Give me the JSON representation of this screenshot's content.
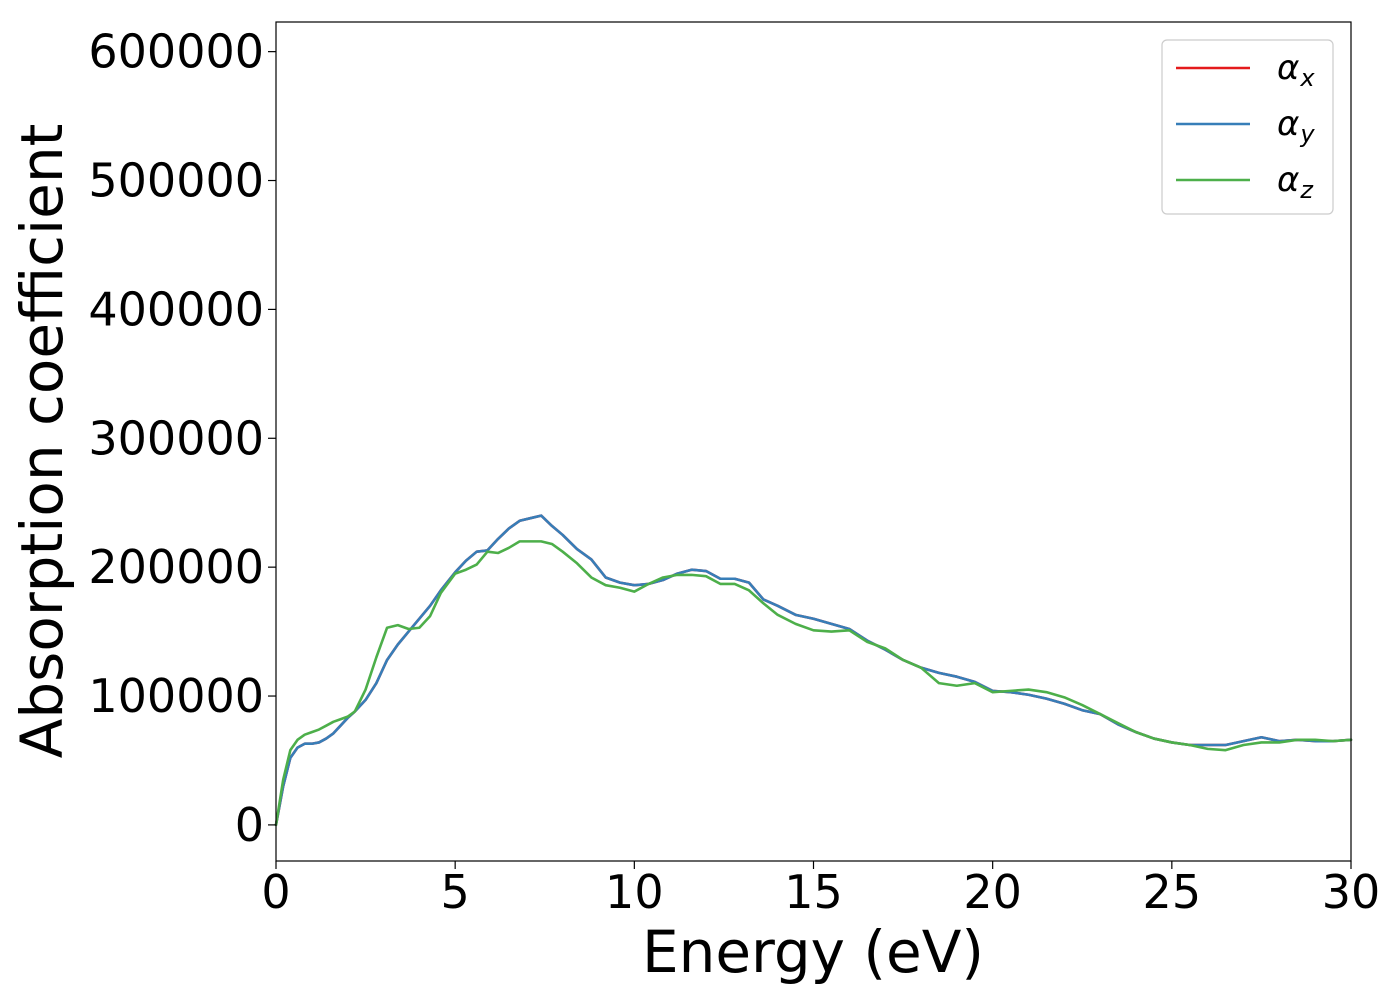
{
  "chart_data": {
    "type": "line",
    "title": "",
    "xlabel": "Energy (eV)",
    "ylabel": "Absorption coefficient",
    "xlim": [
      0,
      30
    ],
    "ylim": [
      -28000,
      623000
    ],
    "xticks": [
      "0",
      "5",
      "10",
      "15",
      "20",
      "25",
      "30"
    ],
    "yticks": [
      "0",
      "100000",
      "200000",
      "300000",
      "400000",
      "500000",
      "600000"
    ],
    "grid": false,
    "legend_position": "top-right",
    "series": [
      {
        "name": "αx",
        "greek": "α",
        "sub": "x",
        "color": "#e41a1c",
        "x": [
          0,
          0.2,
          0.4,
          0.6,
          0.8,
          1.0,
          1.2,
          1.4,
          1.6,
          1.8,
          2.0,
          2.2,
          2.5,
          2.8,
          3.1,
          3.4,
          3.7,
          4.0,
          4.3,
          4.6,
          5.0,
          5.3,
          5.6,
          5.9,
          6.2,
          6.5,
          6.8,
          7.1,
          7.4,
          7.7,
          8.0,
          8.4,
          8.8,
          9.2,
          9.6,
          10.0,
          10.4,
          10.8,
          11.2,
          11.6,
          12.0,
          12.4,
          12.8,
          13.2,
          13.6,
          14.0,
          14.5,
          15.0,
          15.5,
          16.0,
          16.5,
          17.0,
          17.5,
          18.0,
          18.5,
          19.0,
          19.5,
          20.0,
          20.5,
          21.0,
          21.5,
          22.0,
          22.5,
          23.0,
          23.5,
          24.0,
          24.5,
          25.0,
          25.5,
          26.0,
          26.5,
          27.0,
          27.5,
          28.0,
          28.5,
          29.0,
          29.5,
          30.0
        ],
        "y": [
          0,
          30000,
          52000,
          60000,
          63000,
          63000,
          64000,
          67000,
          71000,
          77000,
          83000,
          88000,
          97000,
          110000,
          128000,
          140000,
          150000,
          160000,
          170000,
          182000,
          196000,
          205000,
          212000,
          213000,
          222000,
          230000,
          236000,
          238000,
          240000,
          232000,
          225000,
          214000,
          206000,
          192000,
          188000,
          186000,
          187000,
          190000,
          195000,
          198000,
          197000,
          191000,
          191000,
          188000,
          175000,
          170000,
          163000,
          160000,
          156000,
          152000,
          143000,
          136000,
          128000,
          122000,
          118000,
          115000,
          111000,
          104000,
          103000,
          101000,
          98000,
          94000,
          89000,
          86000,
          78000,
          72000,
          67000,
          64000,
          62000,
          62000,
          62000,
          65000,
          68000,
          65000,
          66000,
          65000,
          65000,
          66000
        ]
      },
      {
        "name": "αy",
        "greek": "α",
        "sub": "y",
        "color": "#377eb8",
        "x": [
          0,
          0.2,
          0.4,
          0.6,
          0.8,
          1.0,
          1.2,
          1.4,
          1.6,
          1.8,
          2.0,
          2.2,
          2.5,
          2.8,
          3.1,
          3.4,
          3.7,
          4.0,
          4.3,
          4.6,
          5.0,
          5.3,
          5.6,
          5.9,
          6.2,
          6.5,
          6.8,
          7.1,
          7.4,
          7.7,
          8.0,
          8.4,
          8.8,
          9.2,
          9.6,
          10.0,
          10.4,
          10.8,
          11.2,
          11.6,
          12.0,
          12.4,
          12.8,
          13.2,
          13.6,
          14.0,
          14.5,
          15.0,
          15.5,
          16.0,
          16.5,
          17.0,
          17.5,
          18.0,
          18.5,
          19.0,
          19.5,
          20.0,
          20.5,
          21.0,
          21.5,
          22.0,
          22.5,
          23.0,
          23.5,
          24.0,
          24.5,
          25.0,
          25.5,
          26.0,
          26.5,
          27.0,
          27.5,
          28.0,
          28.5,
          29.0,
          29.5,
          30.0
        ],
        "y": [
          0,
          30000,
          52000,
          60000,
          63000,
          63000,
          64000,
          67000,
          71000,
          77000,
          83000,
          88000,
          97000,
          110000,
          128000,
          140000,
          150000,
          160000,
          170000,
          182000,
          196000,
          205000,
          212000,
          213000,
          222000,
          230000,
          236000,
          238000,
          240000,
          232000,
          225000,
          214000,
          206000,
          192000,
          188000,
          186000,
          187000,
          190000,
          195000,
          198000,
          197000,
          191000,
          191000,
          188000,
          175000,
          170000,
          163000,
          160000,
          156000,
          152000,
          143000,
          136000,
          128000,
          122000,
          118000,
          115000,
          111000,
          104000,
          103000,
          101000,
          98000,
          94000,
          89000,
          86000,
          78000,
          72000,
          67000,
          64000,
          62000,
          62000,
          62000,
          65000,
          68000,
          65000,
          66000,
          65000,
          65000,
          66000
        ]
      },
      {
        "name": "αz",
        "greek": "α",
        "sub": "z",
        "color": "#4daf4a",
        "x": [
          0,
          0.2,
          0.4,
          0.6,
          0.8,
          1.0,
          1.2,
          1.4,
          1.6,
          1.8,
          2.0,
          2.2,
          2.5,
          2.8,
          3.1,
          3.4,
          3.7,
          4.0,
          4.3,
          4.6,
          5.0,
          5.3,
          5.6,
          5.9,
          6.2,
          6.5,
          6.8,
          7.1,
          7.4,
          7.7,
          8.0,
          8.4,
          8.8,
          9.2,
          9.6,
          10.0,
          10.4,
          10.8,
          11.2,
          11.6,
          12.0,
          12.4,
          12.8,
          13.2,
          13.6,
          14.0,
          14.5,
          15.0,
          15.5,
          16.0,
          16.5,
          17.0,
          17.5,
          18.0,
          18.5,
          19.0,
          19.5,
          20.0,
          20.5,
          21.0,
          21.5,
          22.0,
          22.5,
          23.0,
          23.5,
          24.0,
          24.5,
          25.0,
          25.5,
          26.0,
          26.5,
          27.0,
          27.5,
          28.0,
          28.5,
          29.0,
          29.5,
          30.0
        ],
        "y": [
          0,
          35000,
          58000,
          66000,
          70000,
          72000,
          74000,
          77000,
          80000,
          82000,
          84000,
          88000,
          105000,
          130000,
          153000,
          155000,
          152000,
          153000,
          162000,
          180000,
          195000,
          198000,
          202000,
          212000,
          211000,
          215000,
          220000,
          220000,
          220000,
          218000,
          212000,
          203000,
          192000,
          186000,
          184000,
          181000,
          187000,
          192000,
          194000,
          194000,
          193000,
          187000,
          187000,
          182000,
          172000,
          163000,
          156000,
          151000,
          150000,
          151000,
          142000,
          137000,
          128000,
          122000,
          110000,
          108000,
          110000,
          103000,
          104000,
          105000,
          103000,
          99000,
          93000,
          86000,
          79000,
          72000,
          67000,
          64000,
          62000,
          59000,
          58000,
          62000,
          64000,
          64000,
          66000,
          66000,
          65000,
          66000
        ]
      }
    ]
  }
}
